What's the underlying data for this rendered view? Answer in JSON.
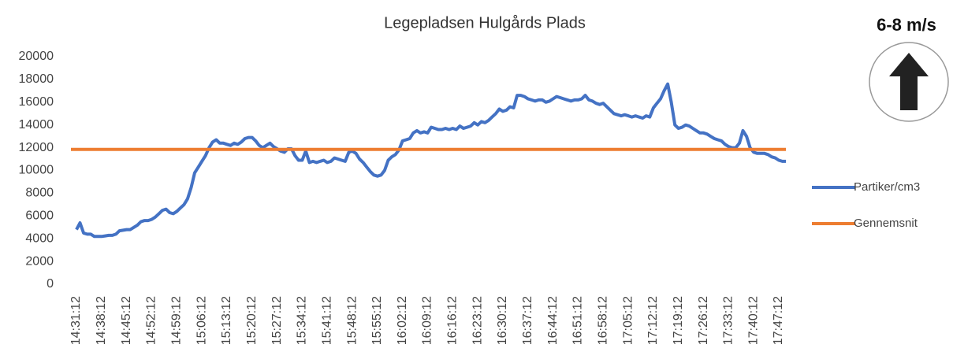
{
  "chart_data": {
    "type": "line",
    "title": "Legepladsen Hulgårds Plads",
    "annotation": "6-8 m/s",
    "categories": [
      "14:31:12",
      null,
      null,
      null,
      null,
      null,
      null,
      "14:38:12",
      null,
      null,
      null,
      null,
      null,
      null,
      "14:45:12",
      null,
      null,
      null,
      null,
      null,
      null,
      "14:52:12",
      null,
      null,
      null,
      null,
      null,
      null,
      "14:59:12",
      null,
      null,
      null,
      null,
      null,
      null,
      "15:06:12",
      null,
      null,
      null,
      null,
      null,
      null,
      "15:13:12",
      null,
      null,
      null,
      null,
      null,
      null,
      "15:20:12",
      null,
      null,
      null,
      null,
      null,
      null,
      "15:27:12",
      null,
      null,
      null,
      null,
      null,
      null,
      "15:34:12",
      null,
      null,
      null,
      null,
      null,
      null,
      "15:41:12",
      null,
      null,
      null,
      null,
      null,
      null,
      "15:48:12",
      null,
      null,
      null,
      null,
      null,
      null,
      "15:55:12",
      null,
      null,
      null,
      null,
      null,
      null,
      "16:02:12",
      null,
      null,
      null,
      null,
      null,
      null,
      "16:09:12",
      null,
      null,
      null,
      null,
      null,
      null,
      "16:16:12",
      null,
      null,
      null,
      null,
      null,
      null,
      "16:23:12",
      null,
      null,
      null,
      null,
      null,
      null,
      "16:30:12",
      null,
      null,
      null,
      null,
      null,
      null,
      "16:37:12",
      null,
      null,
      null,
      null,
      null,
      null,
      "16:44:12",
      null,
      null,
      null,
      null,
      null,
      null,
      "16:51:12",
      null,
      null,
      null,
      null,
      null,
      null,
      "16:58:12",
      null,
      null,
      null,
      null,
      null,
      null,
      "17:05:12",
      null,
      null,
      null,
      null,
      null,
      null,
      "17:12:12",
      null,
      null,
      null,
      null,
      null,
      null,
      "17:19:12",
      null,
      null,
      null,
      null,
      null,
      null,
      "17:26:12",
      null,
      null,
      null,
      null,
      null,
      null,
      "17:33:12",
      null,
      null,
      null,
      null,
      null,
      null,
      "17:40:12",
      null,
      null,
      null,
      null,
      null,
      null,
      "17:47:12",
      null,
      null
    ],
    "series": [
      {
        "name": "Partiker/cm3",
        "color": "#4472c4",
        "values": [
          4800,
          5400,
          4500,
          4400,
          4400,
          4200,
          4200,
          4200,
          4250,
          4300,
          4300,
          4400,
          4700,
          4750,
          4800,
          4800,
          5000,
          5200,
          5500,
          5600,
          5600,
          5700,
          5900,
          6200,
          6500,
          6600,
          6300,
          6200,
          6400,
          6700,
          7000,
          7500,
          8500,
          9800,
          10300,
          10800,
          11300,
          12000,
          12500,
          12700,
          12400,
          12400,
          12300,
          12200,
          12400,
          12300,
          12500,
          12800,
          12900,
          12900,
          12600,
          12200,
          12000,
          12200,
          12400,
          12100,
          11900,
          11700,
          11600,
          11900,
          11900,
          11300,
          10900,
          10900,
          11700,
          10700,
          10800,
          10700,
          10800,
          10900,
          10700,
          10800,
          11100,
          11000,
          10900,
          10800,
          11600,
          11700,
          11500,
          11000,
          10700,
          10300,
          9900,
          9600,
          9500,
          9600,
          10000,
          10900,
          11200,
          11400,
          11800,
          12600,
          12700,
          12800,
          13300,
          13500,
          13300,
          13400,
          13300,
          13800,
          13700,
          13600,
          13600,
          13700,
          13600,
          13700,
          13600,
          13900,
          13700,
          13800,
          13900,
          14200,
          14000,
          14300,
          14200,
          14400,
          14700,
          15000,
          15400,
          15200,
          15300,
          15600,
          15500,
          16600,
          16600,
          16500,
          16300,
          16200,
          16100,
          16200,
          16200,
          16000,
          16100,
          16300,
          16500,
          16400,
          16300,
          16200,
          16100,
          16200,
          16200,
          16300,
          16600,
          16200,
          16100,
          15900,
          15800,
          15900,
          15600,
          15300,
          15000,
          14900,
          14800,
          14900,
          14800,
          14700,
          14800,
          14700,
          14600,
          14800,
          14700,
          15500,
          15900,
          16300,
          17000,
          17600,
          16000,
          14000,
          13700,
          13800,
          14000,
          13900,
          13700,
          13500,
          13300,
          13300,
          13200,
          13000,
          12800,
          12700,
          12600,
          12300,
          12100,
          12000,
          12000,
          12400,
          13500,
          13000,
          12000,
          11600,
          11500,
          11500,
          11500,
          11400,
          11200,
          11100,
          10900,
          10800,
          10800
        ]
      },
      {
        "name": "Gennemsnit",
        "color": "#ed7d31",
        "value": 11850
      }
    ],
    "ylim": [
      0,
      20000
    ],
    "yticks": [
      0,
      2000,
      4000,
      6000,
      8000,
      10000,
      12000,
      14000,
      16000,
      18000,
      20000
    ],
    "grid": false,
    "legend": "right"
  }
}
